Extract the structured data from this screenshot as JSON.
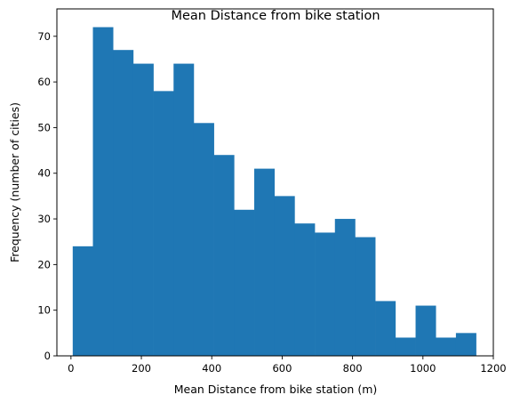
{
  "chart_data": {
    "type": "bar",
    "title": "Mean Distance from bike station",
    "xlabel": "Mean Distance from bike station (m)",
    "ylabel": "Frequency (number of cities)",
    "xlim": [
      -40,
      1200
    ],
    "ylim": [
      0,
      76
    ],
    "xticks": [
      0,
      200,
      400,
      600,
      800,
      1000,
      1200
    ],
    "yticks": [
      0,
      10,
      20,
      30,
      40,
      50,
      60,
      70
    ],
    "bin_edges": [
      5,
      62.3,
      119.6,
      176.9,
      234.2,
      291.5,
      348.8,
      406.1,
      463.4,
      520.7,
      578,
      635.3,
      692.6,
      749.9,
      807.2,
      864.5,
      921.8,
      979.1,
      1036.4,
      1093.7,
      1151
    ],
    "values": [
      24,
      72,
      67,
      64,
      58,
      64,
      51,
      44,
      32,
      41,
      35,
      29,
      27,
      30,
      26,
      12,
      4,
      11,
      4,
      5
    ],
    "bar_color": "#1f77b4",
    "grid": false
  }
}
